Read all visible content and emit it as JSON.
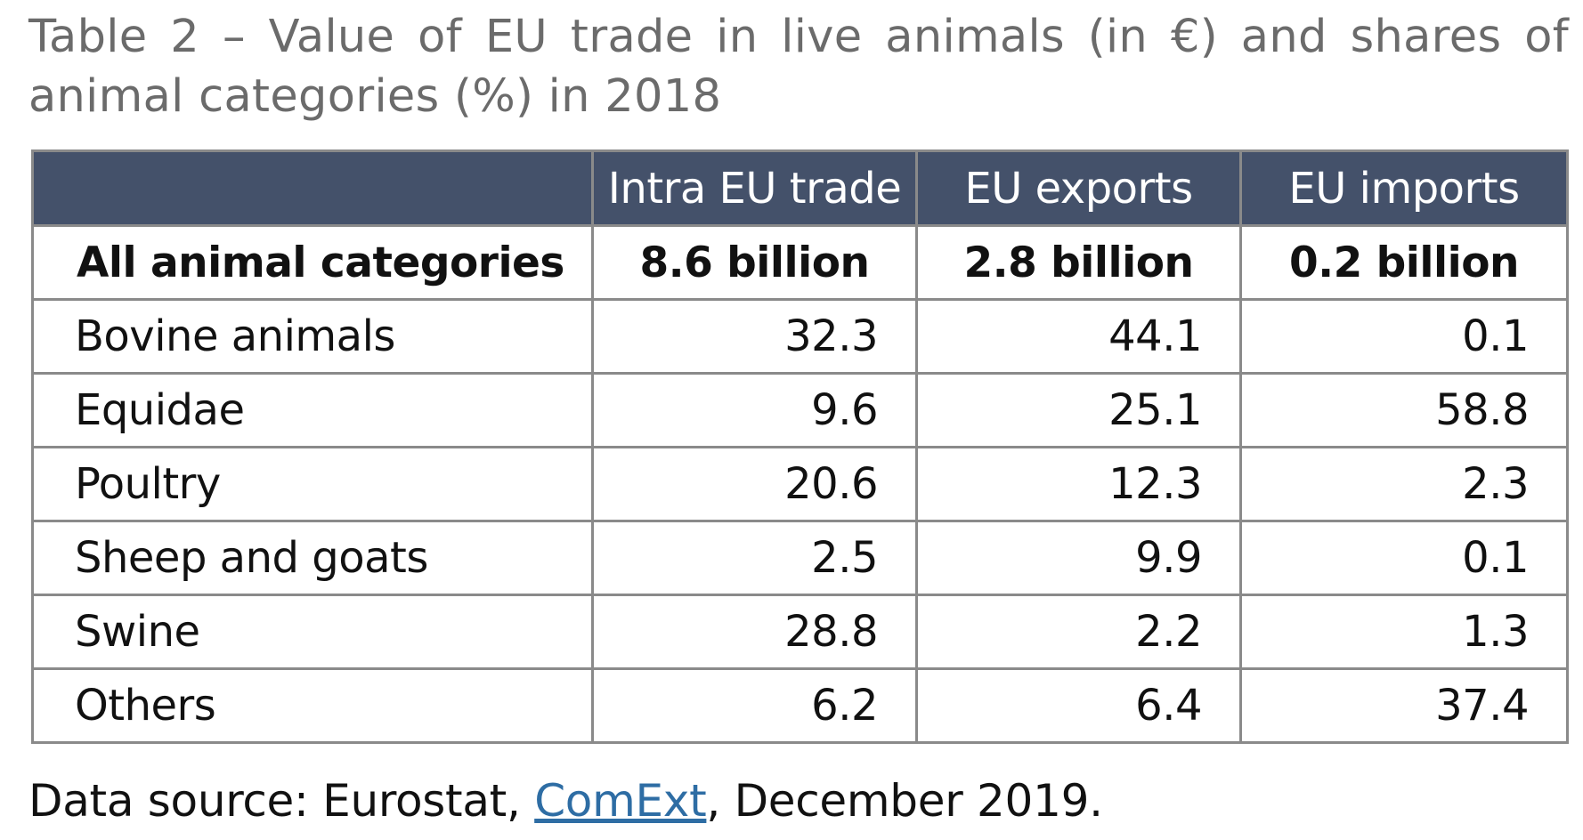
{
  "title": "Table 2 – Value of EU trade in live animals (in €) and shares of animal categories (%) in 2018",
  "table": {
    "header": [
      "",
      "Intra EU trade",
      "EU exports",
      "EU imports"
    ],
    "total_row": [
      "All animal categories",
      "8.6 billion",
      "2.8 billion",
      "0.2 billion"
    ],
    "rows": [
      [
        "Bovine animals",
        "32.3",
        "44.1",
        "0.1"
      ],
      [
        "Equidae",
        "9.6",
        "25.1",
        "58.8"
      ],
      [
        "Poultry",
        "20.6",
        "12.3",
        "2.3"
      ],
      [
        "Sheep and goats",
        "2.5",
        "9.9",
        "0.1"
      ],
      [
        "Swine",
        "28.8",
        "2.2",
        "1.3"
      ],
      [
        "Others",
        "6.2",
        "6.4",
        "37.4"
      ]
    ]
  },
  "source": {
    "prefix": "Data source: Eurostat, ",
    "link_text": "ComExt",
    "suffix": ", December 2019."
  },
  "colors": {
    "header_background": "#44516a",
    "title_text": "#6b6b6b",
    "link": "#2e6da4",
    "border": "#8a8a8a"
  }
}
